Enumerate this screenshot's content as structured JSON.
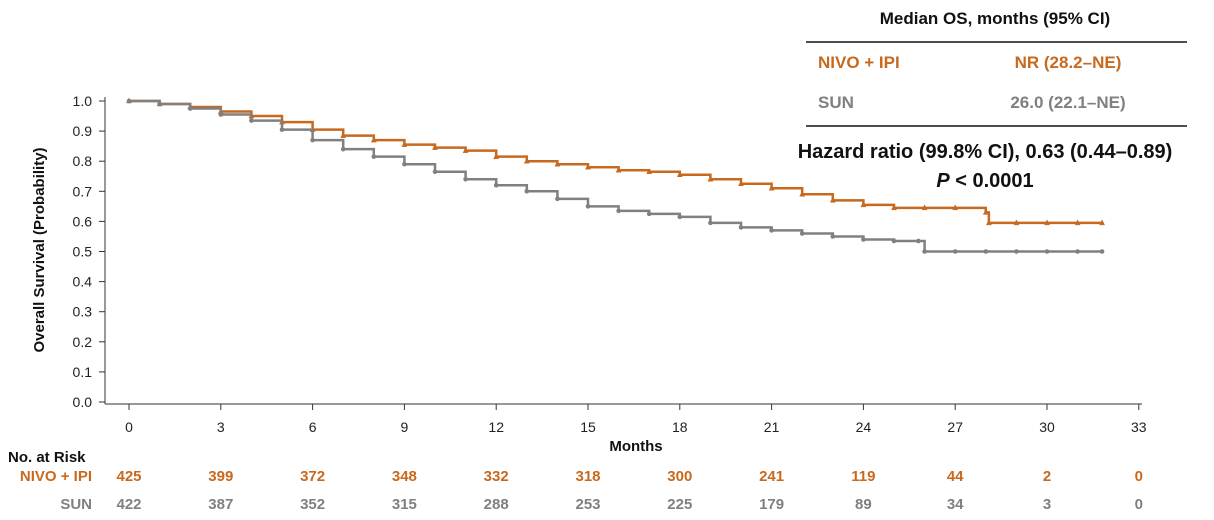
{
  "chart_data": {
    "type": "line",
    "xlabel": "Months",
    "ylabel": "Overall Survival (Probability)",
    "xlim": [
      0,
      33
    ],
    "ylim": [
      0,
      1
    ],
    "x_ticks": [
      "0",
      "3",
      "6",
      "9",
      "12",
      "15",
      "18",
      "21",
      "24",
      "27",
      "30",
      "33"
    ],
    "y_ticks": [
      "0.0",
      "0.1",
      "0.2",
      "0.3",
      "0.4",
      "0.5",
      "0.6",
      "0.7",
      "0.8",
      "0.9",
      "1.0"
    ],
    "grid": false,
    "series": [
      {
        "name": "NIVO + IPI",
        "color": "#c8691e",
        "x": [
          0,
          1,
          2,
          3,
          4,
          5,
          6,
          7,
          8,
          9,
          10,
          11,
          12,
          13,
          14,
          15,
          16,
          17,
          18,
          19,
          20,
          21,
          22,
          23,
          24,
          25,
          26,
          27,
          28,
          28.1,
          29,
          30,
          31,
          31.8
        ],
        "y": [
          1.0,
          0.99,
          0.98,
          0.965,
          0.95,
          0.93,
          0.905,
          0.885,
          0.87,
          0.855,
          0.845,
          0.835,
          0.815,
          0.8,
          0.79,
          0.78,
          0.77,
          0.765,
          0.755,
          0.74,
          0.725,
          0.71,
          0.69,
          0.67,
          0.655,
          0.645,
          0.645,
          0.645,
          0.63,
          0.595,
          0.595,
          0.595,
          0.595,
          0.595
        ]
      },
      {
        "name": "SUN",
        "color": "#808080",
        "x": [
          0,
          1,
          2,
          3,
          4,
          5,
          6,
          7,
          8,
          9,
          10,
          11,
          12,
          13,
          14,
          15,
          16,
          17,
          18,
          19,
          20,
          21,
          22,
          23,
          24,
          25,
          25.8,
          26,
          27,
          28,
          29,
          30,
          31,
          31.8
        ],
        "y": [
          1.0,
          0.99,
          0.975,
          0.955,
          0.935,
          0.905,
          0.87,
          0.84,
          0.815,
          0.79,
          0.765,
          0.74,
          0.72,
          0.7,
          0.675,
          0.65,
          0.635,
          0.625,
          0.615,
          0.595,
          0.58,
          0.57,
          0.56,
          0.55,
          0.54,
          0.535,
          0.535,
          0.5,
          0.5,
          0.5,
          0.5,
          0.5,
          0.5,
          0.5
        ]
      }
    ],
    "legend_placement": "top-right"
  },
  "legend": {
    "header": "Median OS, months (95% CI)",
    "rows": [
      {
        "label": "NIVO + IPI",
        "value": "NR (28.2–NE)",
        "color": "#c8691e"
      },
      {
        "label": "SUN",
        "value": "26.0 (22.1–NE)",
        "color": "#808080"
      }
    ]
  },
  "annotation": {
    "hazard_ratio": "Hazard ratio (99.8% CI), 0.63 (0.44–0.89)",
    "p_symbol": "P",
    "p_rest": " < 0.0001"
  },
  "risk_table": {
    "title": "No. at Risk",
    "rows": [
      {
        "label": "NIVO + IPI",
        "color": "#c8691e",
        "values": [
          "425",
          "399",
          "372",
          "348",
          "332",
          "318",
          "300",
          "241",
          "119",
          "44",
          "2",
          "0"
        ]
      },
      {
        "label": "SUN",
        "color": "#808080",
        "values": [
          "422",
          "387",
          "352",
          "315",
          "288",
          "253",
          "225",
          "179",
          "89",
          "34",
          "3",
          "0"
        ]
      }
    ]
  }
}
